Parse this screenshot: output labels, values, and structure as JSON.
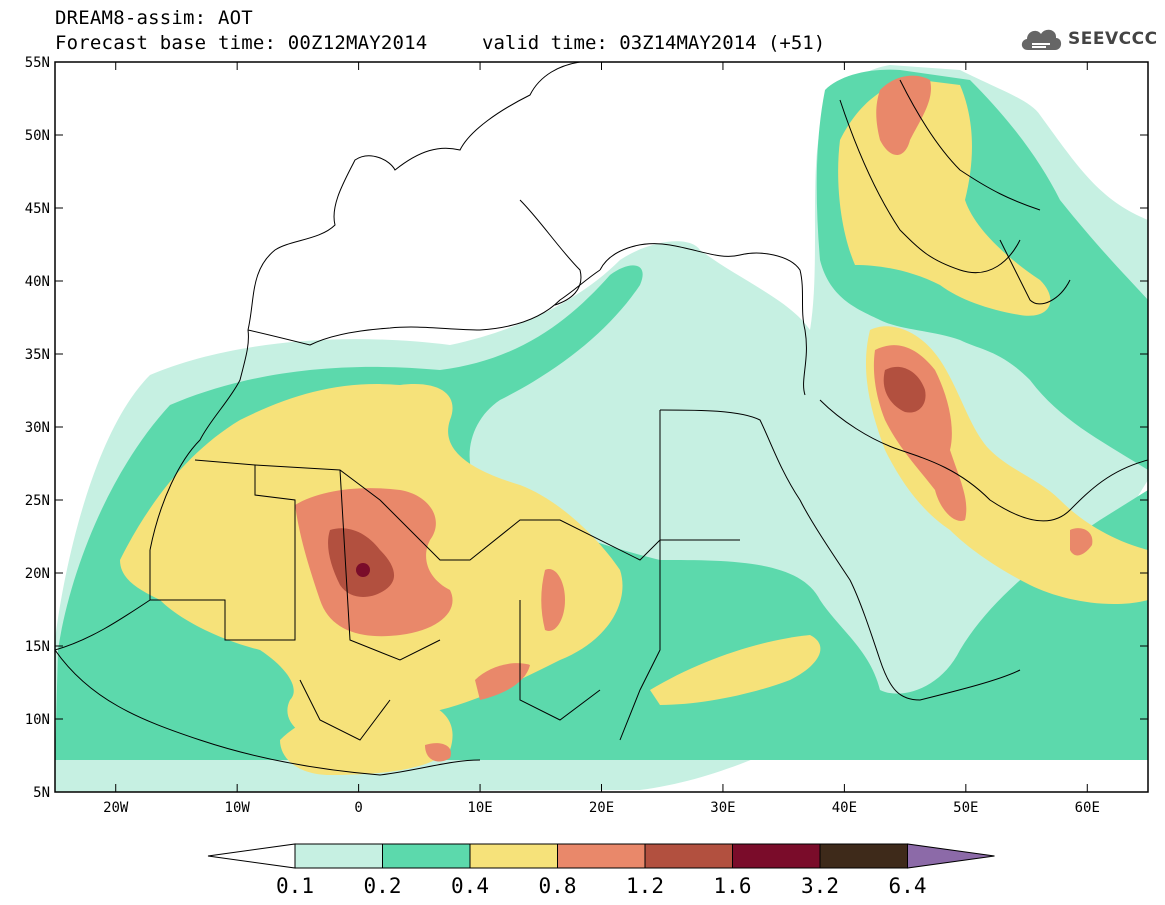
{
  "header": {
    "title": "DREAM8-assim: AOT",
    "base_time": "Forecast base time: 00Z12MAY2014",
    "valid_time": "valid time: 03Z14MAY2014 (+51)",
    "logo_text": "SEEVCCC"
  },
  "map": {
    "lon_range": [
      -25,
      65
    ],
    "lat_range": [
      5,
      55
    ],
    "lat_ticks": [
      {
        "value": 55,
        "label": "55N"
      },
      {
        "value": 50,
        "label": "50N"
      },
      {
        "value": 45,
        "label": "45N"
      },
      {
        "value": 40,
        "label": "40N"
      },
      {
        "value": 35,
        "label": "35N"
      },
      {
        "value": 30,
        "label": "30N"
      },
      {
        "value": 25,
        "label": "25N"
      },
      {
        "value": 20,
        "label": "20N"
      },
      {
        "value": 15,
        "label": "15N"
      },
      {
        "value": 10,
        "label": "10N"
      },
      {
        "value": 5,
        "label": "5N"
      }
    ],
    "lon_ticks": [
      {
        "value": -20,
        "label": "20W"
      },
      {
        "value": -10,
        "label": "10W"
      },
      {
        "value": 0,
        "label": "0"
      },
      {
        "value": 10,
        "label": "10E"
      },
      {
        "value": 20,
        "label": "20E"
      },
      {
        "value": 30,
        "label": "30E"
      },
      {
        "value": 40,
        "label": "40E"
      },
      {
        "value": 50,
        "label": "50E"
      },
      {
        "value": 60,
        "label": "60E"
      }
    ]
  },
  "colorbar": {
    "levels": [
      "0.1",
      "0.2",
      "0.4",
      "0.8",
      "1.2",
      "1.6",
      "3.2",
      "6.4"
    ],
    "colors": [
      "#ffffff",
      "#c6f0e2",
      "#5cd9ac",
      "#f6e27a",
      "#e9886a",
      "#b2503f",
      "#7a0c2a",
      "#3e2a1a",
      "#8c6aa8"
    ]
  }
}
